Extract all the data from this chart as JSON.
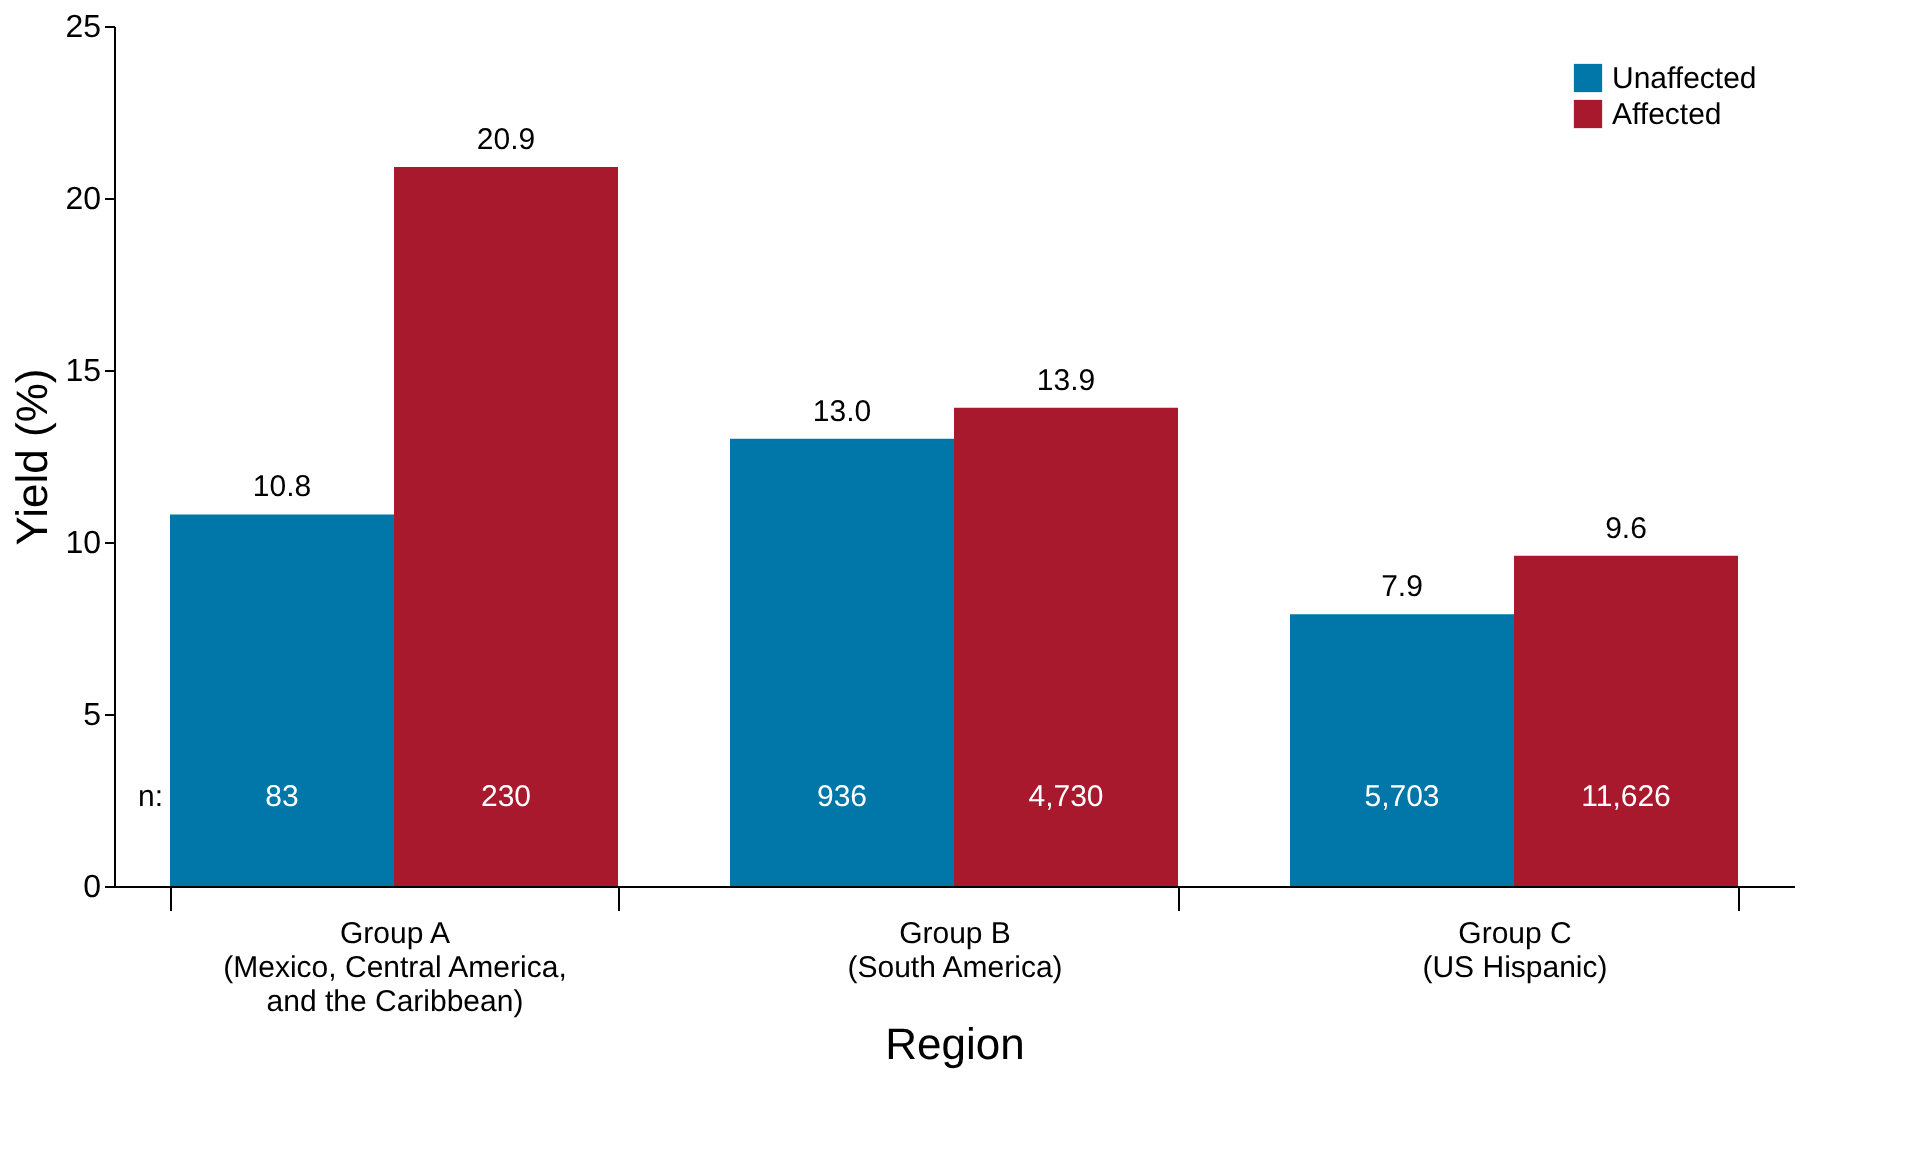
{
  "chart_data": {
    "type": "bar",
    "xlabel": "Region",
    "ylabel": "Yield (%)",
    "categories": [
      "Group A\n(Mexico, Central America,\nand the Caribbean)",
      "Group B\n(South America)",
      "Group C\n(US Hispanic)"
    ],
    "series": [
      {
        "name": "Unaffected",
        "color": "#0077a8",
        "values": [
          10.8,
          13.0,
          7.9
        ],
        "value_labels": [
          "10.8",
          "13.0",
          "7.9"
        ]
      },
      {
        "name": "Affected",
        "color": "#a8192e",
        "values": [
          20.9,
          13.9,
          9.6
        ],
        "value_labels": [
          "20.9",
          "13.9",
          "9.6"
        ]
      }
    ],
    "ylim": [
      0,
      25
    ],
    "yticks": [
      0,
      5,
      10,
      15,
      20,
      25
    ],
    "grid": false,
    "legend": "top right",
    "annotations": [
      "n:",
      "83",
      "230",
      "936",
      "4,730",
      "5,703",
      "11,626"
    ]
  }
}
